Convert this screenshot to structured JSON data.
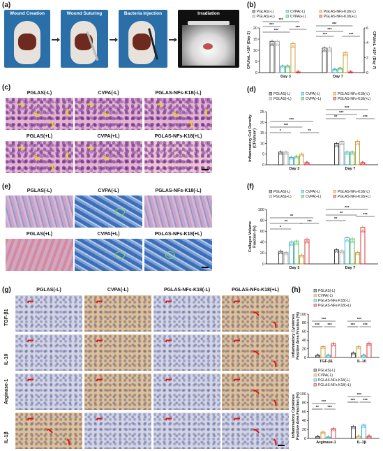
{
  "panels": {
    "a": "(a)",
    "b": "(b)",
    "c": "(c)",
    "d": "(d)",
    "e": "(e)",
    "f": "(f)",
    "g": "(g)",
    "h": "(h)"
  },
  "panel_a": {
    "steps": [
      "Wound Creation",
      "Wound Suturing",
      "Bacteria Injection",
      "Irradiation"
    ]
  },
  "panel_c": {
    "labels": [
      "PGLAS(-L)",
      "CVPA(-L)",
      "PGLAS-NFs-K18(-L)",
      "PGLAS(+L)",
      "CVPA(+L)",
      "PGLAS-NFs-K18(+L)"
    ]
  },
  "panel_e": {
    "labels": [
      "PGLAS(-L)",
      "CVPA(-L)",
      "PGLAS-NFs-K18(-L)",
      "PGLAS(+L)",
      "CVPA(+L)",
      "PGLAS-NFs-K18(+L)"
    ]
  },
  "panel_g": {
    "col_labels": [
      "PGLAS(-L)",
      "CVPA(-L)",
      "PGLAS-NFs-K18(-L)",
      "PGLAS-NFs-K18(+L)"
    ],
    "row_labels": [
      "TGF-β1",
      "IL-10",
      "Arginase-1",
      "IL-1β"
    ]
  },
  "legend6": [
    {
      "name": "PGLAS(-L)",
      "color": "#333333"
    },
    {
      "name": "CVPA(-L)",
      "color": "#2aa9c9"
    },
    {
      "name": "PGLAS-NFs-K18(-L)",
      "color": "#c9962a"
    },
    {
      "name": "PGLAS(+L)",
      "color": "#9a9a9a"
    },
    {
      "name": "CVPA(+L)",
      "color": "#3bb54a"
    },
    {
      "name": "PGLAS-NFs-K18(+L)",
      "color": "#d8262a"
    }
  ],
  "legend4": [
    {
      "name": "PGLAS(-L)",
      "color": "#333333"
    },
    {
      "name": "CVPA(-L)",
      "color": "#c9962a"
    },
    {
      "name": "PGLAS-NFs-K18(-L)",
      "color": "#2aa9c9"
    },
    {
      "name": "PGLAS-NFs-K18(+L)",
      "color": "#d8262a"
    }
  ],
  "sig": "***",
  "sig2": "**",
  "sig1": "*",
  "chart_data": [
    {
      "id": "b",
      "type": "bar",
      "ylabel": "CFU/mL ×10⁸ (Day 3)",
      "ylabel_right": "CFU/mL ×10⁸ (Day 7)",
      "categories": [
        "Day 3",
        "Day 7"
      ],
      "ylim": [
        0,
        20
      ],
      "yticks": [
        0,
        5,
        10,
        15,
        20
      ],
      "ylim_right": [
        0,
        6
      ],
      "yticks_right": [
        0,
        2,
        4,
        6
      ],
      "series": [
        {
          "name": "PGLAS(-L)",
          "values": [
            14,
            11
          ]
        },
        {
          "name": "PGLAS(+L)",
          "values": [
            14,
            11
          ]
        },
        {
          "name": "CVPA(-L)",
          "values": [
            3,
            1.5
          ]
        },
        {
          "name": "CVPA(+L)",
          "values": [
            3,
            2
          ]
        },
        {
          "name": "PGLAS-NFs-K18(-L)",
          "values": [
            13,
            9
          ]
        },
        {
          "name": "PGLAS-NFs-K18(+L)",
          "values": [
            0.3,
            0.3
          ]
        }
      ]
    },
    {
      "id": "d",
      "type": "bar",
      "ylabel": "Inflammatory Cell Density (CFU/mm²)",
      "categories": [
        "Day 3",
        "Day 7"
      ],
      "ylim": [
        0,
        25
      ],
      "yticks": [
        0,
        5,
        10,
        15,
        20,
        25
      ],
      "series": [
        {
          "name": "PGLAS(-L)",
          "values": [
            6,
            10
          ]
        },
        {
          "name": "PGLAS(+L)",
          "values": [
            6,
            11
          ]
        },
        {
          "name": "CVPA(-L)",
          "values": [
            3.5,
            6
          ]
        },
        {
          "name": "CVPA(+L)",
          "values": [
            4,
            6
          ]
        },
        {
          "name": "PGLAS-NFs-K18(-L)",
          "values": [
            5,
            11
          ]
        },
        {
          "name": "PGLAS-NFs-K18(+L)",
          "values": [
            1,
            1
          ]
        }
      ]
    },
    {
      "id": "f",
      "type": "bar",
      "ylabel": "Collagen Volume Fraction (%)",
      "categories": [
        "Day 3",
        "Day 7"
      ],
      "ylim": [
        0,
        100
      ],
      "yticks": [
        0,
        20,
        40,
        60,
        80,
        100
      ],
      "series": [
        {
          "name": "PGLAS(-L)",
          "values": [
            23,
            26
          ]
        },
        {
          "name": "PGLAS(+L)",
          "values": [
            21,
            24
          ]
        },
        {
          "name": "CVPA(-L)",
          "values": [
            40,
            48
          ]
        },
        {
          "name": "CVPA(+L)",
          "values": [
            42,
            46
          ]
        },
        {
          "name": "PGLAS-NFs-K18(-L)",
          "values": [
            16,
            21
          ]
        },
        {
          "name": "PGLAS-NFs-K18(+L)",
          "values": [
            45,
            67
          ]
        }
      ]
    },
    {
      "id": "h1",
      "type": "bar",
      "ylabel": "Inflammatory Cytokines Positive Area Fraction (%)",
      "categories": [
        "TGF-β1",
        "IL-10"
      ],
      "ylim": [
        0,
        100
      ],
      "yticks": [
        0,
        20,
        40,
        60,
        80,
        100
      ],
      "series": [
        {
          "name": "PGLAS(-L)",
          "values": [
            5,
            10
          ]
        },
        {
          "name": "CVPA(-L)",
          "values": [
            25,
            25
          ]
        },
        {
          "name": "PGLAS-NFs-K18(-L)",
          "values": [
            5,
            5
          ]
        },
        {
          "name": "PGLAS-NFs-K18(+L)",
          "values": [
            32,
            33
          ]
        }
      ]
    },
    {
      "id": "h2",
      "type": "bar",
      "ylabel": "Inflammatory Cytokines Positive Area Fraction (%)",
      "categories": [
        "Arginase-1",
        "IL-1β"
      ],
      "ylim": [
        0,
        100
      ],
      "yticks": [
        0,
        20,
        40,
        60,
        80,
        100
      ],
      "series": [
        {
          "name": "PGLAS(-L)",
          "values": [
            4,
            27
          ]
        },
        {
          "name": "CVPA(-L)",
          "values": [
            14,
            5
          ]
        },
        {
          "name": "PGLAS-NFs-K18(-L)",
          "values": [
            3,
            30
          ]
        },
        {
          "name": "PGLAS-NFs-K18(+L)",
          "values": [
            22,
            5
          ]
        }
      ]
    }
  ]
}
